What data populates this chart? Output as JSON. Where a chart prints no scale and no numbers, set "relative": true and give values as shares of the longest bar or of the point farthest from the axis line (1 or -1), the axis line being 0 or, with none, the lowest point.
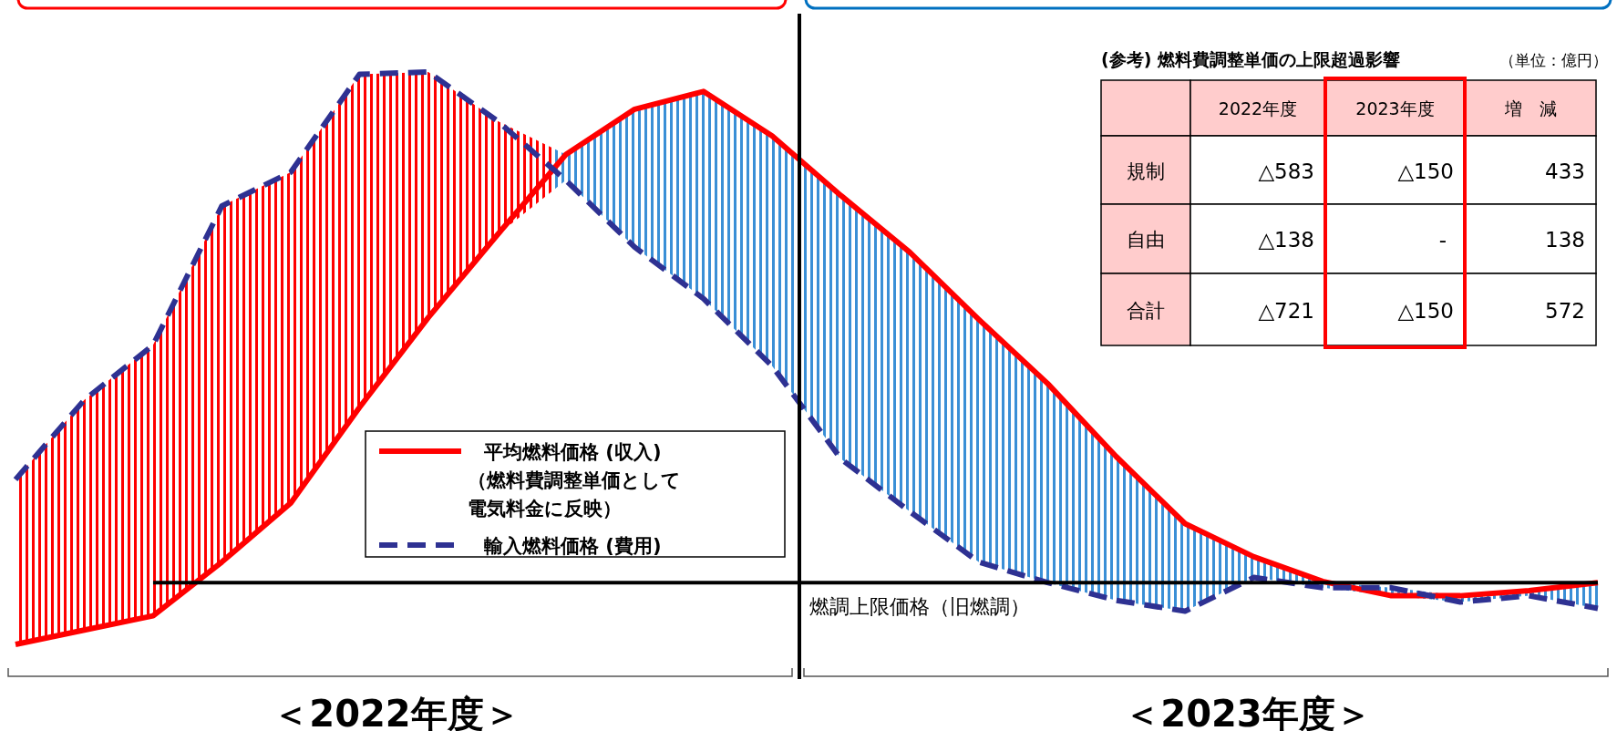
{
  "chart_data": [
    {
      "type": "line",
      "relative": true,
      "tick_labels": false,
      "grid": false,
      "legend": "bottom",
      "categories": [
        null,
        null,
        null,
        null,
        null,
        null,
        null,
        null,
        null,
        null,
        null,
        null,
        null,
        null,
        null,
        null,
        null,
        null,
        null,
        null,
        null,
        null,
        null,
        null
      ],
      "series": [
        {
          "name": "平均燃料価格 (収入)（燃料費調整単価として電気料金に反映）",
          "color": "#ff0000",
          "line_style": "solid",
          "lower": [
            0,
            0.025,
            0.05,
            0.144,
            0.247,
            0.414,
            0.571,
            0.715,
            0.811,
            0.694,
            0.604,
            0.486,
            0.324,
            0.232,
            0.144,
            0.108,
            0.077,
            0.058,
            0.117,
            0.099,
            0.085,
            0.074,
            0.085,
            0.063
          ],
          "upper": [
            0.288,
            0.427,
            0.523,
            0.766,
            0.825,
            0.996,
            1,
            0.915,
            0.856,
            0.935,
            0.966,
            0.888,
            0.784,
            0.685,
            0.568,
            0.456,
            0.328,
            0.211,
            0.153,
            0.11,
            0.099,
            0.085,
            0.094,
            0.108
          ],
          "values": [
            0,
            0.025,
            0.05,
            0.144,
            0.247,
            0.414,
            0.571,
            0.715,
            0.856,
            0.935,
            0.966,
            0.888,
            0.784,
            0.685,
            0.568,
            0.456,
            0.328,
            0.211,
            0.153,
            0.11,
            0.085,
            0.085,
            0.094,
            0.108
          ]
        },
        {
          "name": "輸入燃料価格 (費用)",
          "color": "#2e3192",
          "line_style": "dashed",
          "values": [
            0.288,
            0.427,
            0.523,
            0.766,
            0.825,
            0.996,
            1,
            0.915,
            0.811,
            0.694,
            0.604,
            0.486,
            0.324,
            0.232,
            0.144,
            0.108,
            0.077,
            0.058,
            0.117,
            0.099,
            0.099,
            0.074,
            0.085,
            0.063
          ]
        },
        {
          "name": "燃調上限価格（旧燃調）",
          "color": "#000000",
          "line_style": "solid",
          "values": [
            null,
            null,
            0.108,
            0.108,
            0.108,
            0.108,
            0.108,
            0.108,
            0.108,
            0.108,
            0.108,
            0.108,
            0.108,
            0.108,
            0.108,
            0.108,
            0.108,
            0.108,
            0.108,
            0.108,
            0.108,
            0.108,
            0.108,
            0.108
          ]
        }
      ],
      "annotations": [
        "＜2022年度＞",
        "＜2023年度＞"
      ]
    },
    {
      "type": "other",
      "title": "(参考) 燃料費調整単価の上限超過影響",
      "subtitle": "（単位：億円）",
      "categories": [
        null,
        "2022年度",
        "2023年度",
        "増　減"
      ],
      "y_categories": [
        "規制",
        "自由",
        "合計"
      ],
      "cell_labels": [
        [
          "△583",
          "△150",
          "433"
        ],
        [
          "△138",
          "-",
          "138"
        ],
        [
          "△721",
          "△150",
          "572"
        ]
      ]
    }
  ]
}
